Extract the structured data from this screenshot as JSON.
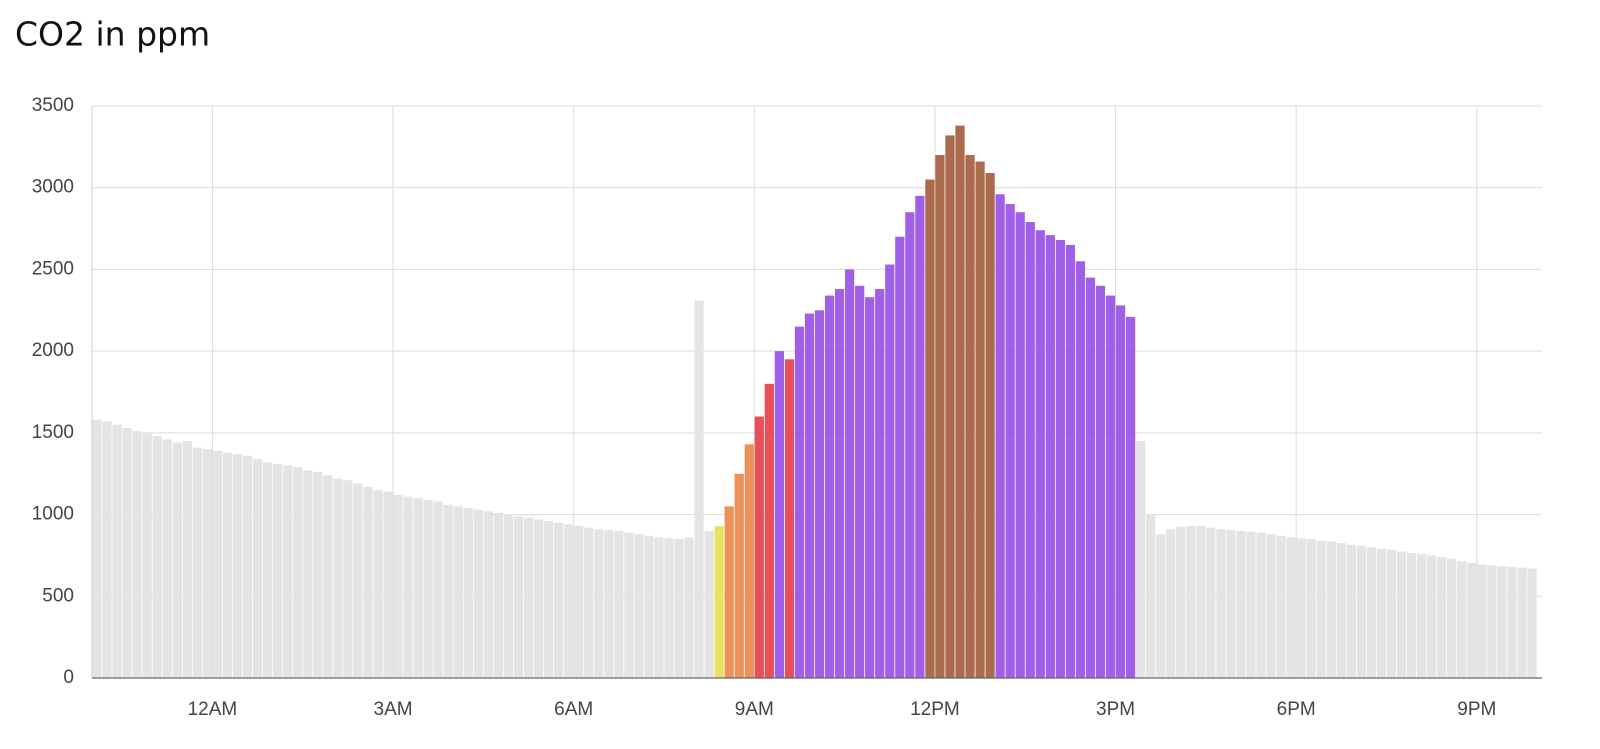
{
  "chart_data": {
    "type": "bar",
    "title": "CO2 in ppm",
    "categories": [
      null,
      null,
      null,
      null,
      null,
      null,
      null,
      null,
      null,
      null,
      null,
      null,
      "12AM",
      null,
      null,
      null,
      null,
      null,
      null,
      null,
      null,
      null,
      null,
      null,
      null,
      null,
      null,
      null,
      null,
      null,
      "3AM",
      null,
      null,
      null,
      null,
      null,
      null,
      null,
      null,
      null,
      null,
      null,
      null,
      null,
      null,
      null,
      null,
      null,
      "6AM",
      null,
      null,
      null,
      null,
      null,
      null,
      null,
      null,
      null,
      null,
      null,
      null,
      null,
      null,
      null,
      null,
      null,
      "9AM",
      null,
      null,
      null,
      null,
      null,
      null,
      null,
      null,
      null,
      null,
      null,
      null,
      null,
      null,
      null,
      null,
      null,
      "12PM",
      null,
      null,
      null,
      null,
      null,
      null,
      null,
      null,
      null,
      null,
      null,
      null,
      null,
      null,
      null,
      null,
      null,
      "3PM",
      null,
      null,
      null,
      null,
      null,
      null,
      null,
      null,
      null,
      null,
      null,
      null,
      null,
      null,
      null,
      null,
      null,
      "6PM",
      null,
      null,
      null,
      null,
      null,
      null,
      null,
      null,
      null,
      null,
      null,
      null,
      null,
      null,
      null,
      null,
      null,
      "9PM",
      null,
      null,
      null,
      null,
      null
    ],
    "values": [
      1580,
      1570,
      1550,
      1530,
      1510,
      1500,
      1480,
      1460,
      1440,
      1450,
      1410,
      1400,
      1390,
      1380,
      1370,
      1360,
      1340,
      1320,
      1310,
      1300,
      1290,
      1270,
      1260,
      1240,
      1220,
      1210,
      1190,
      1170,
      1150,
      1140,
      1120,
      1110,
      1100,
      1090,
      1080,
      1060,
      1050,
      1040,
      1030,
      1020,
      1010,
      1000,
      990,
      980,
      970,
      960,
      950,
      940,
      930,
      920,
      910,
      905,
      900,
      890,
      880,
      870,
      860,
      855,
      850,
      860,
      2310,
      900,
      930,
      1050,
      1250,
      1430,
      1600,
      1800,
      2000,
      1950,
      2150,
      2230,
      2250,
      2340,
      2380,
      2500,
      2400,
      2330,
      2380,
      2530,
      2700,
      2850,
      2950,
      3050,
      3200,
      3320,
      3380,
      3200,
      3160,
      3090,
      2960,
      2900,
      2850,
      2790,
      2740,
      2710,
      2680,
      2650,
      2550,
      2450,
      2400,
      2340,
      2280,
      2210,
      1450,
      1000,
      880,
      910,
      925,
      930,
      930,
      920,
      910,
      905,
      900,
      895,
      890,
      880,
      870,
      860,
      855,
      850,
      840,
      835,
      825,
      815,
      810,
      800,
      790,
      785,
      775,
      765,
      760,
      750,
      740,
      730,
      715,
      705,
      695,
      690,
      685,
      680,
      675,
      670
    ],
    "colors": [
      "#e3e3e3",
      "#e3e3e3",
      "#e3e3e3",
      "#e3e3e3",
      "#e3e3e3",
      "#e3e3e3",
      "#e3e3e3",
      "#e3e3e3",
      "#e3e3e3",
      "#e3e3e3",
      "#e3e3e3",
      "#e3e3e3",
      "#e3e3e3",
      "#e3e3e3",
      "#e3e3e3",
      "#e3e3e3",
      "#e3e3e3",
      "#e3e3e3",
      "#e3e3e3",
      "#e3e3e3",
      "#e3e3e3",
      "#e3e3e3",
      "#e3e3e3",
      "#e3e3e3",
      "#e3e3e3",
      "#e3e3e3",
      "#e3e3e3",
      "#e3e3e3",
      "#e3e3e3",
      "#e3e3e3",
      "#e3e3e3",
      "#e3e3e3",
      "#e3e3e3",
      "#e3e3e3",
      "#e3e3e3",
      "#e3e3e3",
      "#e3e3e3",
      "#e3e3e3",
      "#e3e3e3",
      "#e3e3e3",
      "#e3e3e3",
      "#e3e3e3",
      "#e3e3e3",
      "#e3e3e3",
      "#e3e3e3",
      "#e3e3e3",
      "#e3e3e3",
      "#e3e3e3",
      "#e3e3e3",
      "#e3e3e3",
      "#e3e3e3",
      "#e3e3e3",
      "#e3e3e3",
      "#e3e3e3",
      "#e3e3e3",
      "#e3e3e3",
      "#e3e3e3",
      "#e3e3e3",
      "#e3e3e3",
      "#e3e3e3",
      "#e3e3e3",
      "#e3e3e3",
      "#e9e05c",
      "#e98c50",
      "#e98c50",
      "#e98c50",
      "#e8464f",
      "#e8464f",
      "#9b56e6",
      "#e8464f",
      "#9b56e6",
      "#9b56e6",
      "#9b56e6",
      "#9b56e6",
      "#9b56e6",
      "#9b56e6",
      "#9b56e6",
      "#9b56e6",
      "#9b56e6",
      "#9b56e6",
      "#9b56e6",
      "#9b56e6",
      "#9b56e6",
      "#a86246",
      "#a86246",
      "#a86246",
      "#a86246",
      "#a86246",
      "#a86246",
      "#a86246",
      "#9b56e6",
      "#9b56e6",
      "#9b56e6",
      "#9b56e6",
      "#9b56e6",
      "#9b56e6",
      "#9b56e6",
      "#9b56e6",
      "#9b56e6",
      "#9b56e6",
      "#9b56e6",
      "#9b56e6",
      "#9b56e6",
      "#9b56e6",
      "#e3e3e3",
      "#e3e3e3",
      "#e3e3e3",
      "#e3e3e3",
      "#e3e3e3",
      "#e3e3e3",
      "#e3e3e3",
      "#e3e3e3",
      "#e3e3e3",
      "#e3e3e3",
      "#e3e3e3",
      "#e3e3e3",
      "#e3e3e3",
      "#e3e3e3",
      "#e3e3e3",
      "#e3e3e3",
      "#e3e3e3",
      "#e3e3e3",
      "#e3e3e3",
      "#e3e3e3",
      "#e3e3e3",
      "#e3e3e3",
      "#e3e3e3",
      "#e3e3e3",
      "#e3e3e3",
      "#e3e3e3",
      "#e3e3e3",
      "#e3e3e3",
      "#e3e3e3",
      "#e3e3e3",
      "#e3e3e3",
      "#e3e3e3",
      "#e3e3e3",
      "#e3e3e3",
      "#e3e3e3",
      "#e3e3e3",
      "#e3e3e3",
      "#e3e3e3",
      "#e3e3e3",
      "#e3e3e3"
    ],
    "ylim": [
      0,
      3500
    ],
    "yticks": [
      0,
      500,
      1000,
      1500,
      2000,
      2500,
      3000,
      3500
    ],
    "grid": true
  }
}
